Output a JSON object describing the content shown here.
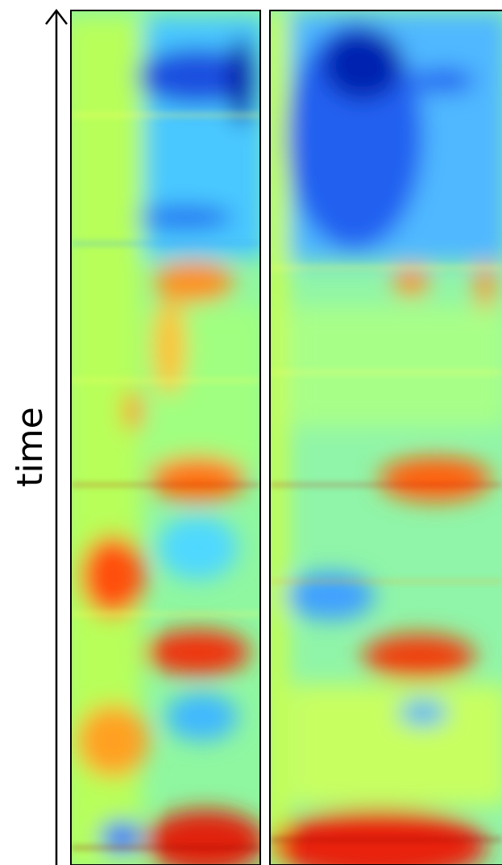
{
  "axis_label": "time"
}
